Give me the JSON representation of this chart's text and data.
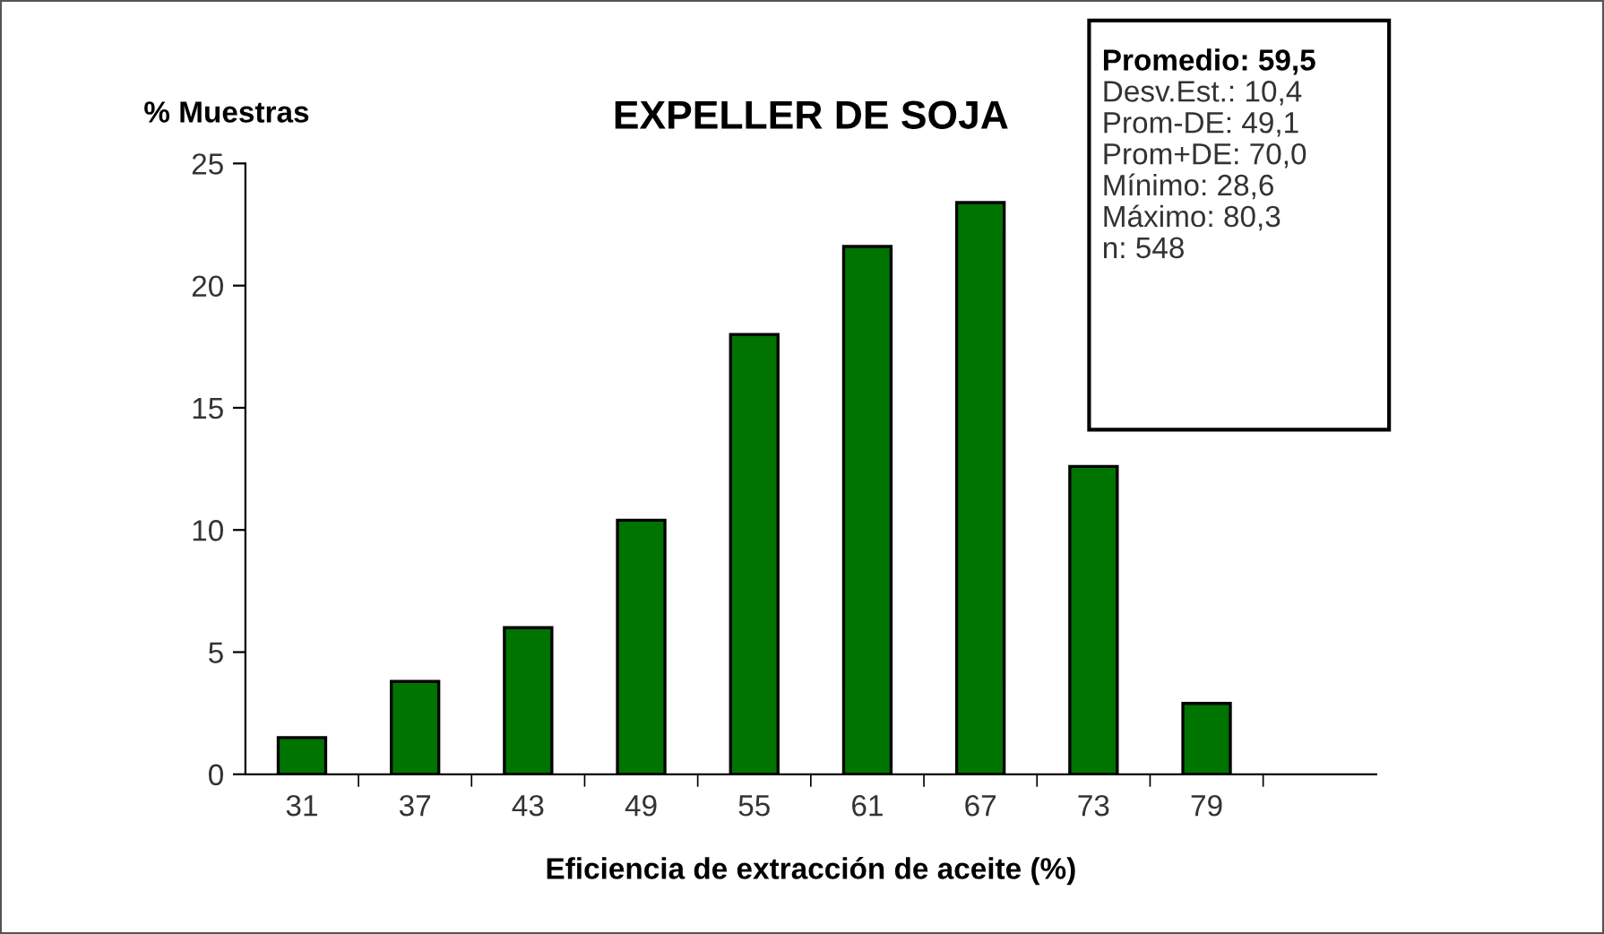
{
  "chart_data": {
    "type": "bar",
    "title": "EXPELLER DE SOJA",
    "ylabel": "% Muestras",
    "xlabel": "Eficiencia de extracción de aceite (%)",
    "categories": [
      "31",
      "37",
      "43",
      "49",
      "55",
      "61",
      "67",
      "73",
      "79",
      null
    ],
    "series": [
      {
        "color": "#007400",
        "values": [
          1.5,
          3.8,
          6.0,
          10.4,
          18.0,
          21.6,
          23.4,
          12.6,
          2.9,
          null
        ]
      }
    ],
    "ylim": [
      0,
      25
    ],
    "yticks": [
      0,
      5,
      10,
      15,
      20,
      25
    ],
    "grid": false,
    "legend": false,
    "annotations": [
      "Promedio: 59,5",
      "Desv.Est.: 10,4",
      "Prom-DE: 49,1",
      "Prom+DE: 70,0",
      "Mínimo: 28,6",
      "Máximo: 80,3",
      "n: 548"
    ]
  }
}
